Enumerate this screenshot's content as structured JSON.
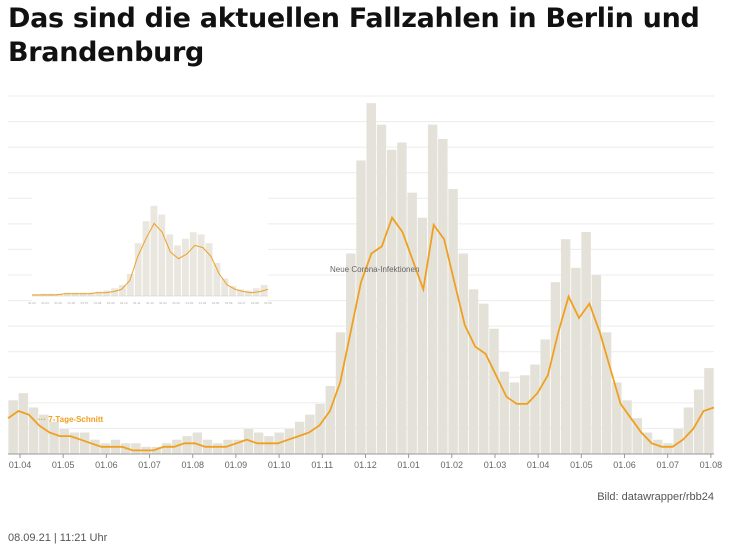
{
  "article": {
    "title": "Das sind die aktuellen Fallzahlen in Berlin und Brandenburg",
    "credit": "Bild: datawrapper/rbb24",
    "timestamp": "08.09.21 | 11:21 Uhr"
  },
  "chart_data": {
    "type": "bar",
    "description_series": [
      {
        "name": "Neue Corona-Infektionen",
        "kind": "bar",
        "color": "#e3e1d8"
      },
      {
        "name": "7-Tage-Schnitt",
        "kind": "line",
        "color": "#f0a020"
      }
    ],
    "x_tick_labels": [
      "01.04",
      "01.05",
      "01.06",
      "01.07",
      "01.08",
      "01.09",
      "01.10",
      "01.11",
      "01.12",
      "01.01",
      "01.02",
      "01.03",
      "01.04",
      "01.05",
      "01.06",
      "01.07",
      "01.08"
    ],
    "grid": true,
    "ylim": [
      0,
      100
    ],
    "annotations": [
      {
        "text": "Neue Corona-Infektionen"
      },
      {
        "text": "··· 7-Tage-Schnitt"
      }
    ],
    "moving_average_values": [
      10,
      12,
      11,
      8,
      6,
      5,
      5,
      4,
      3,
      2,
      2,
      2,
      1,
      1,
      1,
      2,
      2,
      3,
      3,
      2,
      2,
      2,
      3,
      4,
      3,
      3,
      3,
      4,
      5,
      6,
      8,
      12,
      20,
      34,
      48,
      56,
      58,
      66,
      62,
      54,
      46,
      64,
      60,
      48,
      36,
      30,
      28,
      22,
      16,
      14,
      14,
      17,
      22,
      34,
      44,
      38,
      42,
      34,
      24,
      14,
      10,
      6,
      3,
      2,
      2,
      4,
      7,
      12,
      13
    ],
    "bar_values": [
      15,
      17,
      13,
      11,
      9,
      7,
      6,
      6,
      4,
      3,
      4,
      3,
      3,
      2,
      2,
      3,
      4,
      5,
      6,
      4,
      3,
      4,
      4,
      7,
      6,
      5,
      6,
      7,
      9,
      11,
      14,
      19,
      34,
      56,
      82,
      98,
      92,
      85,
      87,
      73,
      66,
      92,
      88,
      74,
      56,
      46,
      42,
      35,
      23,
      20,
      22,
      25,
      32,
      48,
      60,
      52,
      62,
      50,
      34,
      20,
      15,
      10,
      6,
      4,
      3,
      7,
      13,
      18,
      24
    ],
    "inset": {
      "tick_labels": [
        "01.03",
        "01.04",
        "01.05",
        "01.06",
        "01.07",
        "01.08",
        "01.09",
        "01.10",
        "01.11",
        "01.12",
        "01.01",
        "01.02",
        "01.03",
        "01.04",
        "01.05",
        "01.06",
        "01.07",
        "01.08",
        "01.09"
      ],
      "line_values": [
        1,
        1,
        1,
        1,
        2,
        2,
        2,
        2,
        3,
        3,
        4,
        6,
        14,
        36,
        52,
        66,
        58,
        40,
        34,
        38,
        46,
        44,
        36,
        20,
        10,
        6,
        4,
        3,
        4,
        6
      ],
      "bar_values": [
        1,
        2,
        2,
        2,
        3,
        3,
        3,
        3,
        4,
        5,
        7,
        10,
        20,
        48,
        68,
        82,
        74,
        56,
        46,
        52,
        58,
        56,
        48,
        30,
        16,
        9,
        6,
        5,
        7,
        10
      ]
    }
  }
}
